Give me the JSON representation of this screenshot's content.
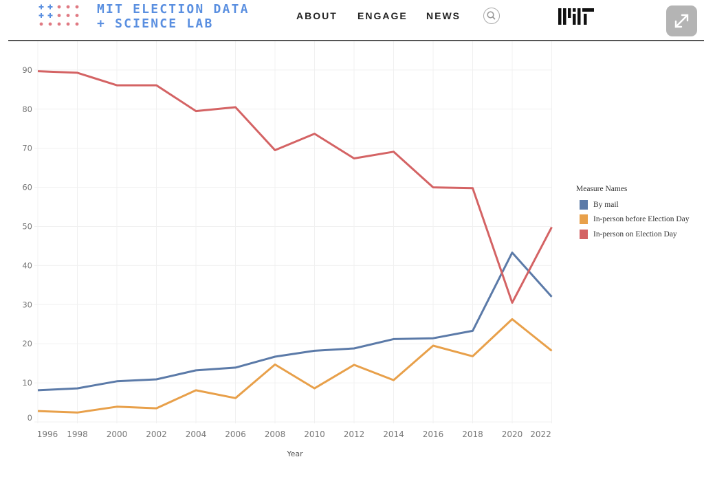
{
  "header": {
    "logo_text_line1": "MIT ELECTION DATA",
    "logo_text_line2": "+ SCIENCE LAB",
    "nav": [
      "ABOUT",
      "ENGAGE",
      "NEWS"
    ],
    "search_icon": "search-icon",
    "mit_logo": "MIT",
    "fullscreen_icon": "expand-arrows-icon"
  },
  "colors": {
    "by_mail": "#5b7aa8",
    "before_election_day": "#e8a04a",
    "on_election_day": "#d46364",
    "logo_blue": "#5a8fe0",
    "logo_red": "#e07a83"
  },
  "chart_data": {
    "type": "line",
    "title": "",
    "xlabel": "Year",
    "ylabel": "",
    "x": [
      1996,
      1998,
      2000,
      2002,
      2004,
      2006,
      2008,
      2010,
      2012,
      2014,
      2016,
      2018,
      2020,
      2022
    ],
    "x_tick_labels": [
      "1996",
      "1998",
      "2000",
      "2002",
      "2004",
      "2006",
      "2008",
      "2010",
      "2012",
      "2014",
      "2016",
      "2018",
      "2020",
      "2022"
    ],
    "y_ticks": [
      0,
      10,
      20,
      30,
      40,
      50,
      60,
      70,
      80,
      90
    ],
    "ylim": [
      0,
      94
    ],
    "grid": true,
    "legend_title": "Measure Names",
    "legend_position": "right",
    "series": [
      {
        "name": "By mail",
        "color": "#5b7aa8",
        "values": [
          8.1,
          8.6,
          10.4,
          10.9,
          13.2,
          13.9,
          16.7,
          18.2,
          18.8,
          21.2,
          21.4,
          23.3,
          43.3,
          32.0
        ]
      },
      {
        "name": "In-person before Election Day",
        "color": "#e8a04a",
        "values": [
          2.8,
          2.4,
          3.9,
          3.5,
          8.1,
          6.1,
          14.7,
          8.6,
          14.6,
          10.7,
          19.5,
          16.8,
          26.3,
          18.2
        ]
      },
      {
        "name": "In-person on Election Day",
        "color": "#d46364",
        "values": [
          89.7,
          89.3,
          86.1,
          86.1,
          79.5,
          80.5,
          69.5,
          73.7,
          67.4,
          69.1,
          60.0,
          59.8,
          30.5,
          49.8
        ]
      }
    ]
  }
}
